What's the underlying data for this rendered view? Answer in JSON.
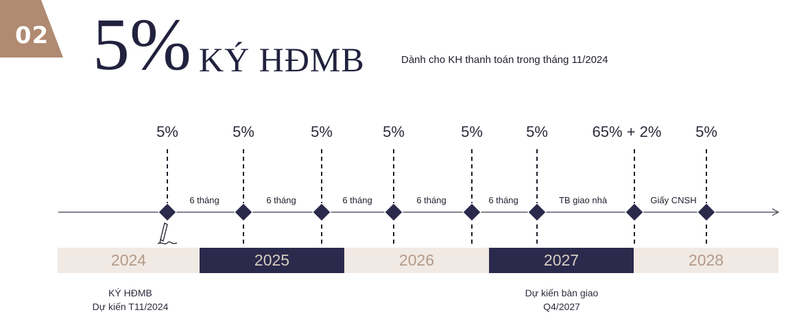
{
  "header": {
    "badge_number": "02",
    "big_percent": "5%",
    "title_word": "KÝ HĐMB",
    "subtitle": "Dành cho KH thanh toán trong tháng 11/2024",
    "badge_color": "#b08a71",
    "title_color": "#22223f"
  },
  "milestones": [
    {
      "percent": "5%"
    },
    {
      "percent": "5%"
    },
    {
      "percent": "5%"
    },
    {
      "percent": "5%"
    },
    {
      "percent": "5%"
    },
    {
      "percent": "5%"
    },
    {
      "percent": "65% + 2%"
    },
    {
      "percent": "5%"
    }
  ],
  "intervals": [
    "6 tháng",
    "6 tháng",
    "6 tháng",
    "6 tháng",
    "6 tháng",
    "TB giao nhà",
    "Giấy CNSH"
  ],
  "years": [
    "2024",
    "2025",
    "2026",
    "2027",
    "2028"
  ],
  "notes": {
    "sign": {
      "line1": "KÝ HĐMB",
      "line2": "Dự kiến T11/2024"
    },
    "handover": {
      "line1": "Dự kiến bàn giao",
      "line2": "Q4/2027"
    }
  },
  "icons": {
    "sign": "signature-pen-icon",
    "arrow": "arrow-right-icon"
  },
  "colors": {
    "navy": "#2b2a4c",
    "beige": "#f1e9e3",
    "brown": "#b08a71"
  }
}
